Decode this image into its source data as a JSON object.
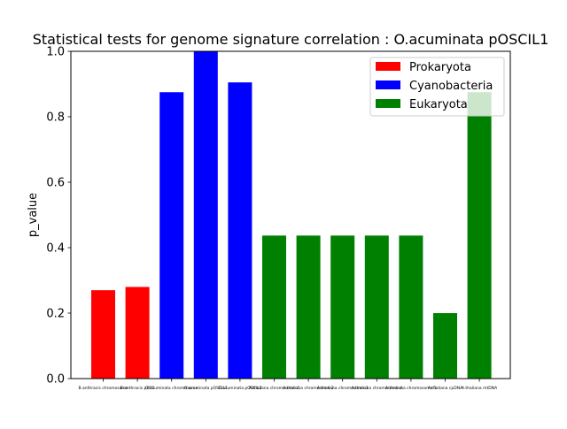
{
  "chart_data": {
    "type": "bar",
    "title": "Statistical tests for genome signature correlation : O.acuminata pOSCIL1",
    "xlabel": "",
    "ylabel": "p_value",
    "ylim": [
      0,
      1.0
    ],
    "yticks": [
      "0.0",
      "0.2",
      "0.4",
      "0.6",
      "0.8",
      "1.0"
    ],
    "categories": [
      "B.anthracis chromosome",
      "B.anthracis pXO1",
      "O.acuminata chromosome",
      "O.acuminata pOSCIL1",
      "O.acuminata pOSCIL2",
      "A.thaliana chromosome 1",
      "A.thaliana chromosome 2",
      "A.thaliana chromosome 3",
      "A.thaliana chromosome 4",
      "A.thaliana chromosome 5",
      "A.thaliana cpDNA",
      "A.thaliana mtDNA"
    ],
    "values": [
      0.27,
      0.28,
      0.875,
      1.0,
      0.905,
      0.437,
      0.437,
      0.437,
      0.437,
      0.437,
      0.2,
      0.875
    ],
    "groups": [
      "Prokaryota",
      "Prokaryota",
      "Cyanobacteria",
      "Cyanobacteria",
      "Cyanobacteria",
      "Eukaryota",
      "Eukaryota",
      "Eukaryota",
      "Eukaryota",
      "Eukaryota",
      "Eukaryota",
      "Eukaryota"
    ],
    "legend": [
      {
        "name": "Prokaryota",
        "color": "#ff0000"
      },
      {
        "name": "Cyanobacteria",
        "color": "#0000ff"
      },
      {
        "name": "Eukaryota",
        "color": "#008000"
      }
    ],
    "legend_position": "top-right",
    "grid": false
  }
}
